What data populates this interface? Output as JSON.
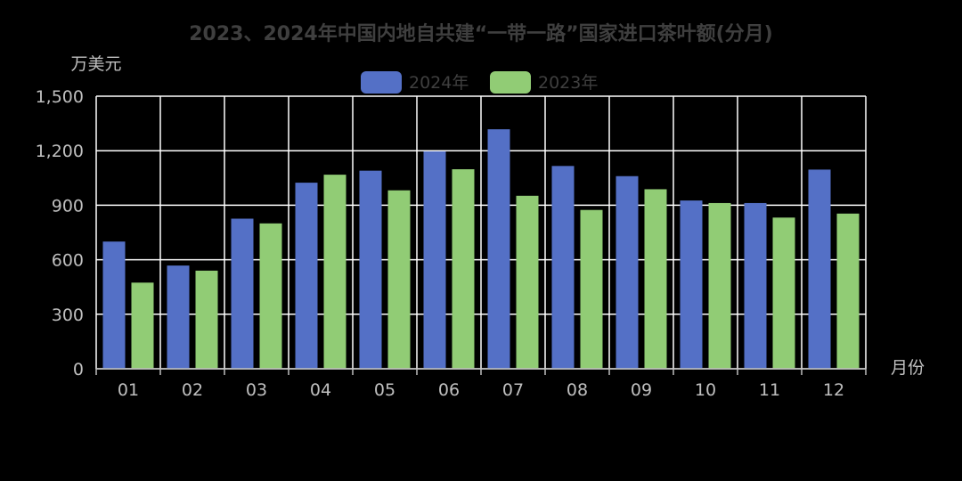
{
  "chart_data": {
    "type": "bar",
    "title": "2023、2024年中国内地自共建“一带一路”国家进口茶叶额(分月)",
    "ylabel": "万美元",
    "xlabel": "月份",
    "categories": [
      "01",
      "02",
      "03",
      "04",
      "05",
      "06",
      "07",
      "08",
      "09",
      "10",
      "11",
      "12"
    ],
    "series": [
      {
        "name": "2024年",
        "color": "#5470c6",
        "values": [
          700,
          568,
          826,
          1024,
          1090,
          1196,
          1318,
          1116,
          1060,
          926,
          912,
          1096
        ]
      },
      {
        "name": "2023年",
        "color": "#91cc75",
        "values": [
          474,
          540,
          800,
          1068,
          982,
          1098,
          952,
          874,
          988,
          912,
          832,
          854
        ]
      }
    ],
    "ylim": [
      0,
      1500
    ],
    "yticks": [
      {
        "value": 0,
        "label": "0"
      },
      {
        "value": 300,
        "label": "300"
      },
      {
        "value": 600,
        "label": "600"
      },
      {
        "value": 900,
        "label": "900"
      },
      {
        "value": 1200,
        "label": "1,200"
      },
      {
        "value": 1500,
        "label": "1,500"
      }
    ],
    "grid": true,
    "legend": "top-center"
  }
}
